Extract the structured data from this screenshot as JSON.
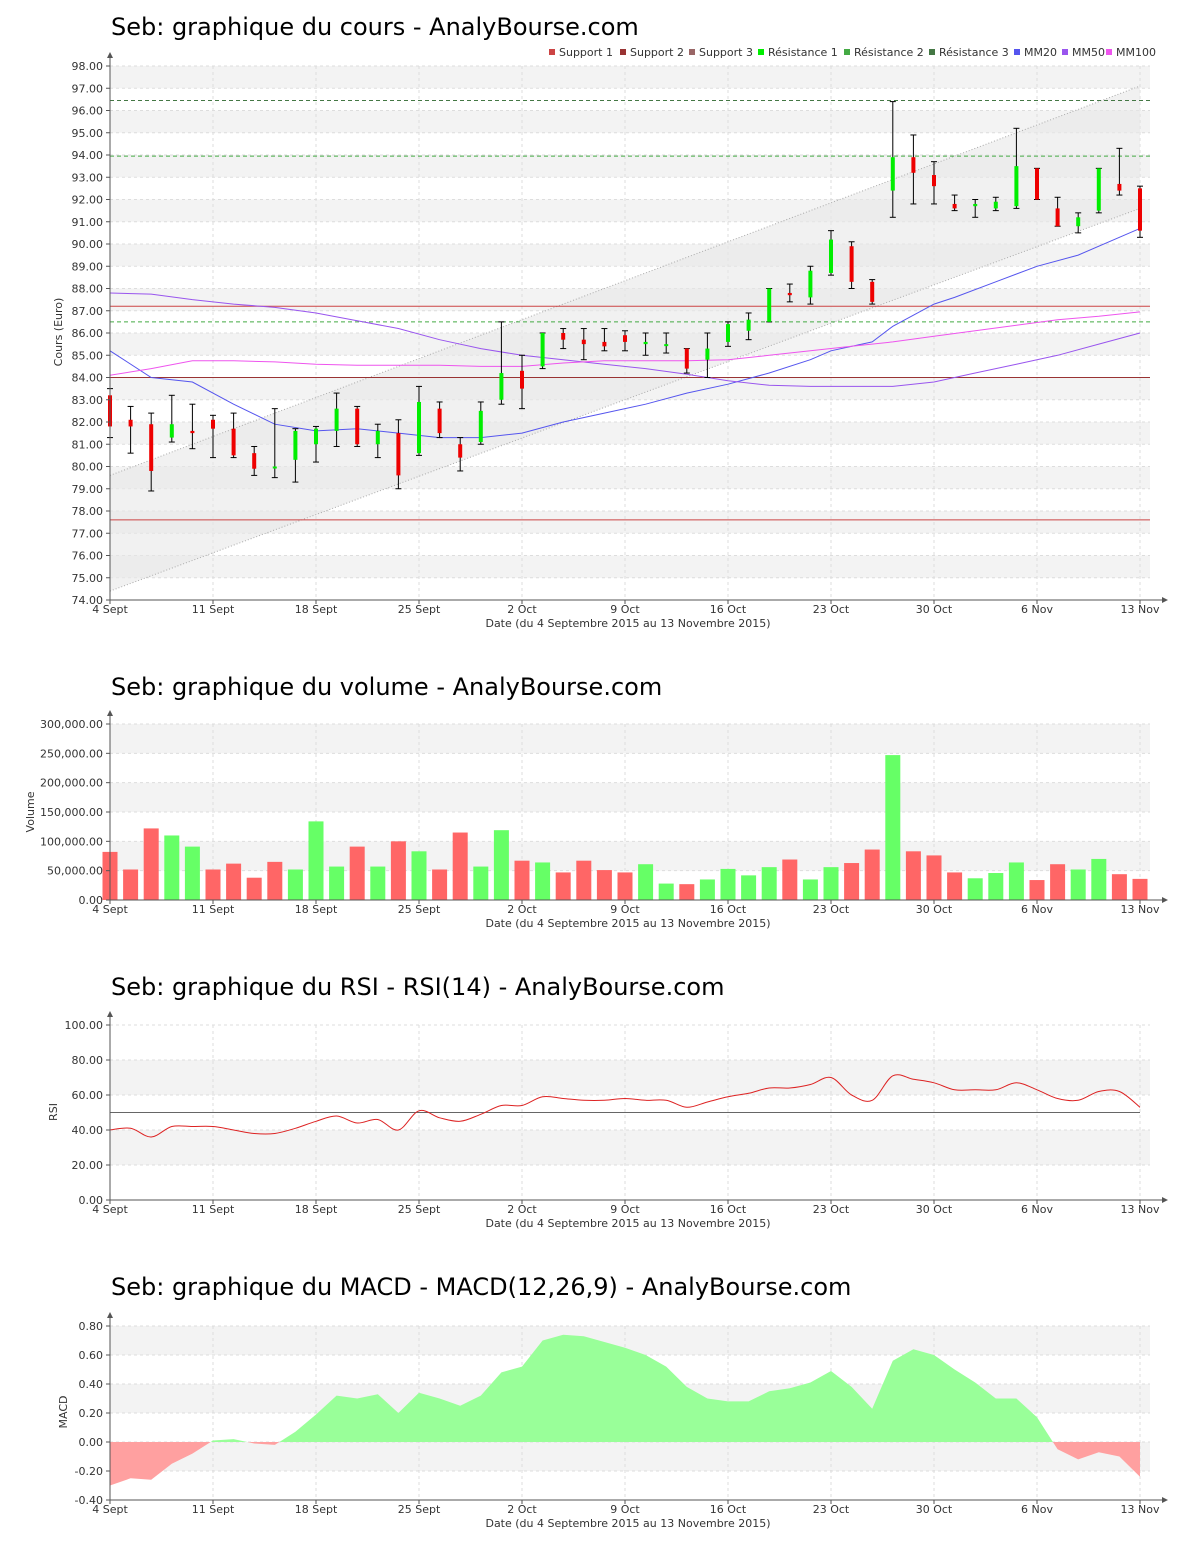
{
  "colors": {
    "up": "#00ee00",
    "down": "#ee0000",
    "vol_up": "#66ff66",
    "vol_down": "#ff6666",
    "support": "#cc4444",
    "resistance": "#44aa44",
    "resistance3": "#447744",
    "mm20": "#5555ee",
    "mm50": "#9955ee",
    "mm100": "#ee55ee",
    "rsi": "#dd2222",
    "macd_pos": "#99ff99",
    "macd_neg": "#ffa0a0"
  },
  "chart_data": [
    {
      "type": "candlestick",
      "title": "Seb: graphique du cours - AnalyBourse.com",
      "xlabel": "Date (du 4 Septembre 2015 au 13 Novembre 2015)",
      "ylabel": "Cours (Euro)",
      "ylim": [
        74,
        98
      ],
      "ytick_labels": [
        "74.00",
        "75.00",
        "76.00",
        "77.00",
        "78.00",
        "79.00",
        "80.00",
        "81.00",
        "82.00",
        "83.00",
        "84.00",
        "85.00",
        "86.00",
        "87.00",
        "88.00",
        "89.00",
        "90.00",
        "91.00",
        "92.00",
        "93.00",
        "94.00",
        "95.00",
        "96.00",
        "97.00",
        "98.00"
      ],
      "xtick_labels": [
        "4 Sept",
        "11 Sept",
        "18 Sept",
        "25 Sept",
        "2 Oct",
        "9 Oct",
        "16 Oct",
        "23 Oct",
        "30 Oct",
        "6 Nov",
        "13 Nov"
      ],
      "legend": [
        "Support 1",
        "Support 2",
        "Support 3",
        "Résistance 1",
        "Résistance 2",
        "Résistance 3",
        "MM20",
        "MM50",
        "MM100"
      ],
      "legend_position": "top-right",
      "grid": true,
      "levels": {
        "support1": 77.6,
        "support2": 84.0,
        "support3": 87.2,
        "resistance1": 86.5,
        "resistance2": 93.95,
        "resistance3": 96.45
      },
      "candles": [
        {
          "day": 0,
          "open": 83.2,
          "close": 81.8,
          "high": 83.5,
          "low": 81.3
        },
        {
          "day": 1,
          "open": 82.1,
          "close": 81.8,
          "high": 82.7,
          "low": 80.6
        },
        {
          "day": 2,
          "open": 81.9,
          "close": 79.8,
          "high": 82.4,
          "low": 78.9
        },
        {
          "day": 3,
          "open": 81.3,
          "close": 81.9,
          "high": 83.2,
          "low": 81.1
        },
        {
          "day": 4,
          "open": 81.6,
          "close": 81.5,
          "high": 82.8,
          "low": 80.8
        },
        {
          "day": 5,
          "open": 82.1,
          "close": 81.7,
          "high": 82.3,
          "low": 80.4
        },
        {
          "day": 6,
          "open": 81.7,
          "close": 80.5,
          "high": 82.4,
          "low": 80.4
        },
        {
          "day": 7,
          "open": 80.6,
          "close": 79.9,
          "high": 80.9,
          "low": 79.6
        },
        {
          "day": 8,
          "open": 80.0,
          "close": 80.0,
          "high": 82.6,
          "low": 79.5
        },
        {
          "day": 9,
          "open": 80.3,
          "close": 81.6,
          "high": 81.7,
          "low": 79.3
        },
        {
          "day": 10,
          "open": 81.0,
          "close": 81.7,
          "high": 81.8,
          "low": 80.2
        },
        {
          "day": 11,
          "open": 81.6,
          "close": 82.6,
          "high": 83.3,
          "low": 80.9
        },
        {
          "day": 12,
          "open": 82.6,
          "close": 81.0,
          "high": 82.7,
          "low": 80.9
        },
        {
          "day": 13,
          "open": 81.0,
          "close": 81.6,
          "high": 81.9,
          "low": 80.4
        },
        {
          "day": 14,
          "open": 81.5,
          "close": 79.6,
          "high": 82.1,
          "low": 79.0
        },
        {
          "day": 15,
          "open": 80.6,
          "close": 82.9,
          "high": 83.6,
          "low": 80.5
        },
        {
          "day": 16,
          "open": 82.6,
          "close": 81.5,
          "high": 82.9,
          "low": 81.3
        },
        {
          "day": 17,
          "open": 81.0,
          "close": 80.4,
          "high": 81.3,
          "low": 79.8
        },
        {
          "day": 18,
          "open": 81.1,
          "close": 82.5,
          "high": 82.9,
          "low": 81.0
        },
        {
          "day": 19,
          "open": 83.0,
          "close": 84.2,
          "high": 86.5,
          "low": 82.8
        },
        {
          "day": 20,
          "open": 84.3,
          "close": 83.5,
          "high": 85.0,
          "low": 82.6
        },
        {
          "day": 21,
          "open": 84.5,
          "close": 86.0,
          "high": 86.0,
          "low": 84.4
        },
        {
          "day": 22,
          "open": 86.0,
          "close": 85.7,
          "high": 86.2,
          "low": 85.3
        },
        {
          "day": 23,
          "open": 85.7,
          "close": 85.5,
          "high": 86.2,
          "low": 84.8
        },
        {
          "day": 24,
          "open": 85.6,
          "close": 85.4,
          "high": 86.2,
          "low": 85.2
        },
        {
          "day": 25,
          "open": 85.9,
          "close": 85.6,
          "high": 86.1,
          "low": 85.2
        },
        {
          "day": 26,
          "open": 85.5,
          "close": 85.6,
          "high": 86.0,
          "low": 85.0
        },
        {
          "day": 27,
          "open": 85.5,
          "close": 85.5,
          "high": 86.0,
          "low": 85.1
        },
        {
          "day": 28,
          "open": 85.3,
          "close": 84.4,
          "high": 85.3,
          "low": 84.2
        },
        {
          "day": 29,
          "open": 84.8,
          "close": 85.3,
          "high": 86.0,
          "low": 84.0
        },
        {
          "day": 30,
          "open": 85.6,
          "close": 86.4,
          "high": 86.5,
          "low": 85.4
        },
        {
          "day": 31,
          "open": 86.1,
          "close": 86.6,
          "high": 86.9,
          "low": 85.7
        },
        {
          "day": 32,
          "open": 86.5,
          "close": 88.0,
          "high": 88.0,
          "low": 86.5
        },
        {
          "day": 33,
          "open": 87.8,
          "close": 87.7,
          "high": 88.2,
          "low": 87.4
        },
        {
          "day": 34,
          "open": 87.6,
          "close": 88.8,
          "high": 89.0,
          "low": 87.3
        },
        {
          "day": 35,
          "open": 88.7,
          "close": 90.2,
          "high": 90.6,
          "low": 88.6
        },
        {
          "day": 36,
          "open": 89.9,
          "close": 88.3,
          "high": 90.1,
          "low": 88.0
        },
        {
          "day": 37,
          "open": 88.3,
          "close": 87.4,
          "high": 88.4,
          "low": 87.3
        },
        {
          "day": 38,
          "open": 92.4,
          "close": 93.9,
          "high": 96.4,
          "low": 91.2
        },
        {
          "day": 39,
          "open": 93.9,
          "close": 93.2,
          "high": 94.9,
          "low": 91.8
        },
        {
          "day": 40,
          "open": 93.1,
          "close": 92.6,
          "high": 93.7,
          "low": 91.8
        },
        {
          "day": 41,
          "open": 91.8,
          "close": 91.6,
          "high": 92.2,
          "low": 91.5
        },
        {
          "day": 42,
          "open": 91.7,
          "close": 91.8,
          "high": 92.0,
          "low": 91.2
        },
        {
          "day": 43,
          "open": 91.6,
          "close": 91.9,
          "high": 92.1,
          "low": 91.5
        },
        {
          "day": 44,
          "open": 91.7,
          "close": 93.5,
          "high": 95.2,
          "low": 91.6
        },
        {
          "day": 45,
          "open": 93.4,
          "close": 92.0,
          "high": 93.4,
          "low": 92.0
        },
        {
          "day": 46,
          "open": 91.6,
          "close": 90.8,
          "high": 92.1,
          "low": 90.8
        },
        {
          "day": 47,
          "open": 90.8,
          "close": 91.2,
          "high": 91.4,
          "low": 90.5
        },
        {
          "day": 48,
          "open": 91.5,
          "close": 93.4,
          "high": 93.4,
          "low": 91.4
        },
        {
          "day": 49,
          "open": 92.7,
          "close": 92.4,
          "high": 94.3,
          "low": 92.2
        },
        {
          "day": 50,
          "open": 92.5,
          "close": 90.6,
          "high": 92.6,
          "low": 90.3
        }
      ],
      "mm20": [
        [
          0,
          85.2
        ],
        [
          2,
          84.0
        ],
        [
          4,
          83.8
        ],
        [
          6,
          82.8
        ],
        [
          8,
          81.9
        ],
        [
          10,
          81.6
        ],
        [
          12,
          81.7
        ],
        [
          14,
          81.5
        ],
        [
          16,
          81.3
        ],
        [
          18,
          81.3
        ],
        [
          20,
          81.5
        ],
        [
          22,
          82.0
        ],
        [
          24,
          82.4
        ],
        [
          26,
          82.8
        ],
        [
          28,
          83.3
        ],
        [
          30,
          83.7
        ],
        [
          32,
          84.2
        ],
        [
          34,
          84.8
        ],
        [
          35,
          85.2
        ],
        [
          37,
          85.6
        ],
        [
          38,
          86.3
        ],
        [
          40,
          87.3
        ],
        [
          41,
          87.6
        ],
        [
          43,
          88.3
        ],
        [
          45,
          89.0
        ],
        [
          47,
          89.5
        ],
        [
          49,
          90.3
        ],
        [
          50,
          90.7
        ]
      ],
      "mm50": [
        [
          0,
          87.8
        ],
        [
          2,
          87.75
        ],
        [
          4,
          87.5
        ],
        [
          6,
          87.3
        ],
        [
          8,
          87.15
        ],
        [
          10,
          86.9
        ],
        [
          12,
          86.55
        ],
        [
          14,
          86.2
        ],
        [
          16,
          85.7
        ],
        [
          18,
          85.3
        ],
        [
          20,
          85.0
        ],
        [
          22,
          84.8
        ],
        [
          24,
          84.6
        ],
        [
          26,
          84.4
        ],
        [
          28,
          84.15
        ],
        [
          30,
          83.85
        ],
        [
          32,
          83.65
        ],
        [
          34,
          83.6
        ],
        [
          36,
          83.6
        ],
        [
          38,
          83.6
        ],
        [
          40,
          83.8
        ],
        [
          42,
          84.2
        ],
        [
          44,
          84.6
        ],
        [
          46,
          85.0
        ],
        [
          48,
          85.5
        ],
        [
          50,
          86.0
        ]
      ],
      "mm100": [
        [
          0,
          84.1
        ],
        [
          2,
          84.4
        ],
        [
          4,
          84.75
        ],
        [
          6,
          84.75
        ],
        [
          8,
          84.7
        ],
        [
          10,
          84.6
        ],
        [
          12,
          84.55
        ],
        [
          14,
          84.55
        ],
        [
          16,
          84.55
        ],
        [
          18,
          84.5
        ],
        [
          20,
          84.5
        ],
        [
          22,
          84.65
        ],
        [
          24,
          84.75
        ],
        [
          26,
          84.75
        ],
        [
          28,
          84.75
        ],
        [
          30,
          84.8
        ],
        [
          32,
          85.0
        ],
        [
          34,
          85.2
        ],
        [
          36,
          85.4
        ],
        [
          38,
          85.6
        ],
        [
          40,
          85.85
        ],
        [
          42,
          86.1
        ],
        [
          44,
          86.35
        ],
        [
          46,
          86.6
        ],
        [
          48,
          86.75
        ],
        [
          50,
          86.95
        ]
      ],
      "channel_upper": [
        [
          0,
          79.6
        ],
        [
          50,
          97.1
        ]
      ],
      "channel_lower": [
        [
          0,
          74.4
        ],
        [
          50,
          91.6
        ]
      ]
    },
    {
      "type": "bar",
      "title": "Seb: graphique du volume - AnalyBourse.com",
      "xlabel": "Date (du 4 Septembre 2015 au 13 Novembre 2015)",
      "ylabel": "Volume",
      "ylim": [
        0,
        300000
      ],
      "ytick_labels": [
        "0.00",
        "50,000.00",
        "100,000.00",
        "150,000.00",
        "200,000.00",
        "250,000.00",
        "300,000.00"
      ],
      "xtick_labels": [
        "4 Sept",
        "11 Sept",
        "18 Sept",
        "25 Sept",
        "2 Oct",
        "9 Oct",
        "16 Oct",
        "23 Oct",
        "30 Oct",
        "6 Nov",
        "13 Nov"
      ],
      "values": [
        82000,
        52000,
        122000,
        110000,
        91000,
        52000,
        62000,
        38000,
        65000,
        52000,
        134000,
        57000,
        91000,
        57000,
        100000,
        83000,
        52000,
        115000,
        57000,
        119000,
        67000,
        64000,
        47000,
        67000,
        51000,
        47000,
        61000,
        28000,
        27000,
        35000,
        53000,
        42000,
        56000,
        69000,
        35000,
        56000,
        63000,
        86000,
        247000,
        83000,
        76000,
        47000,
        37000,
        46000,
        64000,
        34000,
        61000,
        52000,
        70000,
        44000,
        36000
      ],
      "direction": [
        "down",
        "down",
        "down",
        "up",
        "up",
        "down",
        "down",
        "down",
        "down",
        "up",
        "up",
        "up",
        "down",
        "up",
        "down",
        "up",
        "down",
        "down",
        "up",
        "up",
        "down",
        "up",
        "down",
        "down",
        "down",
        "down",
        "up",
        "up",
        "down",
        "up",
        "up",
        "up",
        "up",
        "down",
        "up",
        "up",
        "down",
        "down",
        "up",
        "down",
        "down",
        "down",
        "up",
        "up",
        "up",
        "down",
        "down",
        "up",
        "up",
        "down",
        "down"
      ],
      "grid": true
    },
    {
      "type": "line",
      "title": "Seb: graphique du RSI - RSI(14) - AnalyBourse.com",
      "xlabel": "Date (du 4 Septembre 2015 au 13 Novembre 2015)",
      "ylabel": "RSI",
      "ylim": [
        0,
        100
      ],
      "ytick_labels": [
        "0.00",
        "20.00",
        "40.00",
        "60.00",
        "80.00",
        "100.00"
      ],
      "xtick_labels": [
        "4 Sept",
        "11 Sept",
        "18 Sept",
        "25 Sept",
        "2 Oct",
        "9 Oct",
        "16 Oct",
        "23 Oct",
        "30 Oct",
        "6 Nov",
        "13 Nov"
      ],
      "reference_line": 50,
      "values": [
        40,
        41,
        36,
        42,
        42,
        42,
        40,
        38,
        38,
        41,
        45,
        48,
        44,
        46,
        40,
        51,
        47,
        45,
        49,
        54,
        54,
        59,
        58,
        57,
        57,
        58,
        57,
        57,
        53,
        56,
        59,
        61,
        64,
        64,
        66,
        70,
        60,
        57,
        71,
        69,
        67,
        63,
        63,
        63,
        67,
        63,
        58,
        57,
        62,
        62,
        53
      ],
      "grid": true
    },
    {
      "type": "area",
      "title": "Seb: graphique du MACD - MACD(12,26,9) - AnalyBourse.com",
      "xlabel": "Date (du 4 Septembre 2015 au 13 Novembre 2015)",
      "ylabel": "MACD",
      "ylim": [
        -0.4,
        0.8
      ],
      "ytick_labels": [
        "-0.40",
        "-0.20",
        "0.00",
        "0.20",
        "0.40",
        "0.60",
        "0.80"
      ],
      "xtick_labels": [
        "4 Sept",
        "11 Sept",
        "18 Sept",
        "25 Sept",
        "2 Oct",
        "9 Oct",
        "16 Oct",
        "23 Oct",
        "30 Oct",
        "6 Nov",
        "13 Nov"
      ],
      "values": [
        -0.3,
        -0.25,
        -0.26,
        -0.15,
        -0.08,
        0.01,
        0.02,
        -0.01,
        -0.02,
        0.07,
        0.19,
        0.32,
        0.3,
        0.33,
        0.2,
        0.34,
        0.3,
        0.25,
        0.32,
        0.48,
        0.52,
        0.7,
        0.74,
        0.73,
        0.69,
        0.65,
        0.6,
        0.52,
        0.38,
        0.3,
        0.28,
        0.28,
        0.35,
        0.37,
        0.41,
        0.49,
        0.38,
        0.23,
        0.56,
        0.64,
        0.6,
        0.5,
        0.41,
        0.3,
        0.3,
        0.17,
        -0.05,
        -0.12,
        -0.07,
        -0.1,
        -0.24
      ],
      "grid": true
    }
  ]
}
